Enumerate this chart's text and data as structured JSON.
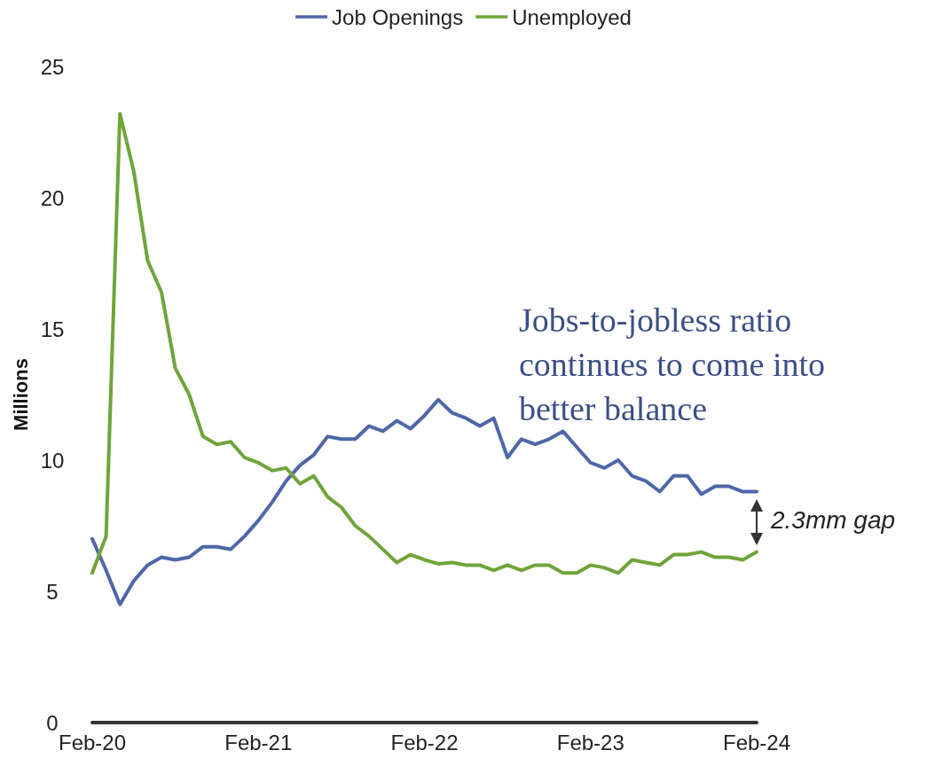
{
  "chart_data": {
    "type": "line",
    "ylabel": "Millions",
    "categories": [
      "Feb-20",
      null,
      null,
      null,
      null,
      null,
      null,
      null,
      null,
      null,
      null,
      null,
      "Feb-21",
      null,
      null,
      null,
      null,
      null,
      null,
      null,
      null,
      null,
      null,
      null,
      "Feb-22",
      null,
      null,
      null,
      null,
      null,
      null,
      null,
      null,
      null,
      null,
      null,
      "Feb-23",
      null,
      null,
      null,
      null,
      null,
      null,
      null,
      null,
      null,
      null,
      null,
      "Feb-24"
    ],
    "series": [
      {
        "name": "Job Openings",
        "color": "#4e67a8",
        "values": [
          7.0,
          5.8,
          4.5,
          5.4,
          6.0,
          6.3,
          6.2,
          6.3,
          6.7,
          6.7,
          6.6,
          7.1,
          7.7,
          8.4,
          9.2,
          9.8,
          10.2,
          10.9,
          10.8,
          10.8,
          11.3,
          11.1,
          11.5,
          11.2,
          11.7,
          12.3,
          11.8,
          11.6,
          11.3,
          11.6,
          10.1,
          10.8,
          10.6,
          10.8,
          11.1,
          10.5,
          9.9,
          9.7,
          10.0,
          9.4,
          9.2,
          8.8,
          9.4,
          9.4,
          8.7,
          9.0,
          9.0,
          8.8,
          8.8
        ]
      },
      {
        "name": "Unemployed",
        "color": "#6fa53a",
        "values": [
          5.7,
          7.1,
          23.2,
          21.0,
          17.6,
          16.4,
          13.5,
          12.5,
          10.9,
          10.6,
          10.7,
          10.1,
          9.9,
          9.6,
          9.7,
          9.1,
          9.4,
          8.6,
          8.2,
          7.5,
          7.1,
          6.6,
          6.1,
          6.4,
          6.2,
          6.05,
          6.1,
          6.0,
          6.0,
          5.8,
          6.0,
          5.8,
          6.0,
          6.0,
          5.7,
          5.7,
          6.0,
          5.9,
          5.7,
          6.2,
          6.1,
          6.0,
          6.4,
          6.4,
          6.5,
          6.3,
          6.3,
          6.2,
          6.5
        ]
      }
    ],
    "ylim": [
      0,
      25
    ],
    "yticks": [
      0,
      5,
      10,
      15,
      20,
      25
    ],
    "grid": false,
    "legend": "top",
    "marker": "none",
    "line_style": "solid",
    "annotations": [
      "Jobs-to-jobless ratio\ncontinues to come into\nbetter balance",
      "2.3mm gap"
    ]
  }
}
